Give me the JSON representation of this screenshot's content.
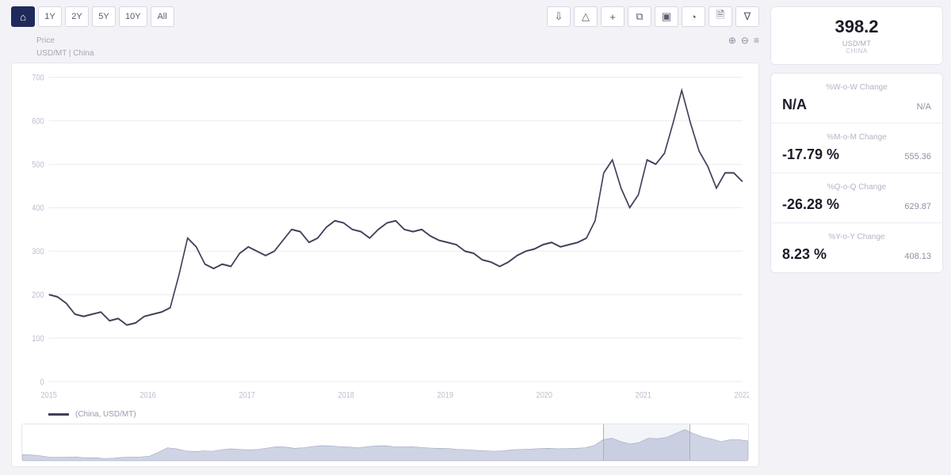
{
  "toolbar": {
    "range_buttons": [
      {
        "label": "",
        "icon": "⌂",
        "active": true
      },
      {
        "label": "1Y"
      },
      {
        "label": "2Y"
      },
      {
        "label": "5Y"
      },
      {
        "label": "10Y"
      },
      {
        "label": "All"
      }
    ],
    "action_icons": [
      "⇩",
      "△",
      "+",
      "⧉",
      "▣",
      "◔",
      "🗎",
      "∇"
    ]
  },
  "chart_header": {
    "line1": "Price",
    "line2": "USD/MT | China",
    "mini_icons": [
      "⊕",
      "⊖",
      "≡"
    ]
  },
  "chart": {
    "type": "line",
    "line_color": "#40405a",
    "line_width": 1.6,
    "background_color": "#ffffff",
    "grid_color": "#efeef4",
    "axis_label_color": "#bdbdd0",
    "axis_fontsize": 9,
    "ylim": [
      0,
      700
    ],
    "ytick_step": 100,
    "x_labels": [
      "2015",
      "2016",
      "2017",
      "2018",
      "2019",
      "2020",
      "2021",
      "2022"
    ],
    "series": [
      200,
      195,
      180,
      155,
      150,
      155,
      160,
      140,
      145,
      130,
      135,
      150,
      155,
      160,
      170,
      245,
      330,
      310,
      270,
      260,
      270,
      265,
      295,
      310,
      300,
      290,
      300,
      325,
      350,
      345,
      320,
      330,
      355,
      370,
      365,
      350,
      345,
      330,
      350,
      365,
      370,
      350,
      345,
      350,
      335,
      325,
      320,
      315,
      300,
      295,
      280,
      275,
      265,
      275,
      290,
      300,
      305,
      315,
      320,
      310,
      315,
      320,
      330,
      370,
      480,
      510,
      445,
      400,
      430,
      510,
      500,
      525,
      595,
      670,
      595,
      530,
      495,
      445,
      480,
      480,
      460
    ]
  },
  "legend": {
    "label": "(China, USD/MT)"
  },
  "brush": {
    "fill_color": "#cfd4e4",
    "stroke_color": "#9aa2c0",
    "select_start_pct": 80,
    "select_end_pct": 92
  },
  "side": {
    "headline_value": "398.2",
    "headline_unit": "USD/MT",
    "headline_region": "CHINA",
    "stats": [
      {
        "label": "%W-o-W Change",
        "main": "N/A",
        "side": "N/A"
      },
      {
        "label": "%M-o-M Change",
        "main": "-17.79 %",
        "side": "555.36"
      },
      {
        "label": "%Q-o-Q Change",
        "main": "-26.28 %",
        "side": "629.87"
      },
      {
        "label": "%Y-o-Y Change",
        "main": "8.23 %",
        "side": "408.13"
      }
    ]
  }
}
